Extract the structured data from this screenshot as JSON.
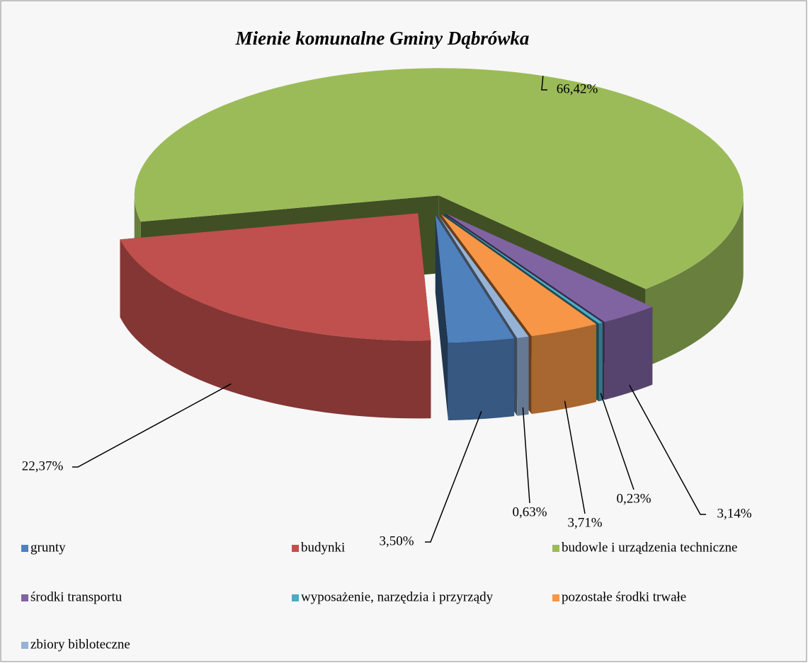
{
  "chart_data": {
    "type": "pie3d",
    "title": "Mienie komunalne Gminy Dąbrówka",
    "categories": [
      "grunty",
      "budynki",
      "budowle i urządzenia techniczne",
      "środki transportu",
      "wyposażenie, narzędzia i przyrządy",
      "pozostałe środki trwałe",
      "zbiory bibloteczne"
    ],
    "values": [
      3.5,
      22.37,
      66.42,
      3.14,
      0.23,
      3.71,
      0.63
    ],
    "value_labels": [
      "3,50%",
      "22,37%",
      "66,42%",
      "3,14%",
      "0,23%",
      "3,71%",
      "0,63%"
    ],
    "colors": [
      "#4f81bd",
      "#c0504d",
      "#9bbb59",
      "#8064a2",
      "#4bacc6",
      "#f79646",
      "#95b3d7"
    ]
  }
}
